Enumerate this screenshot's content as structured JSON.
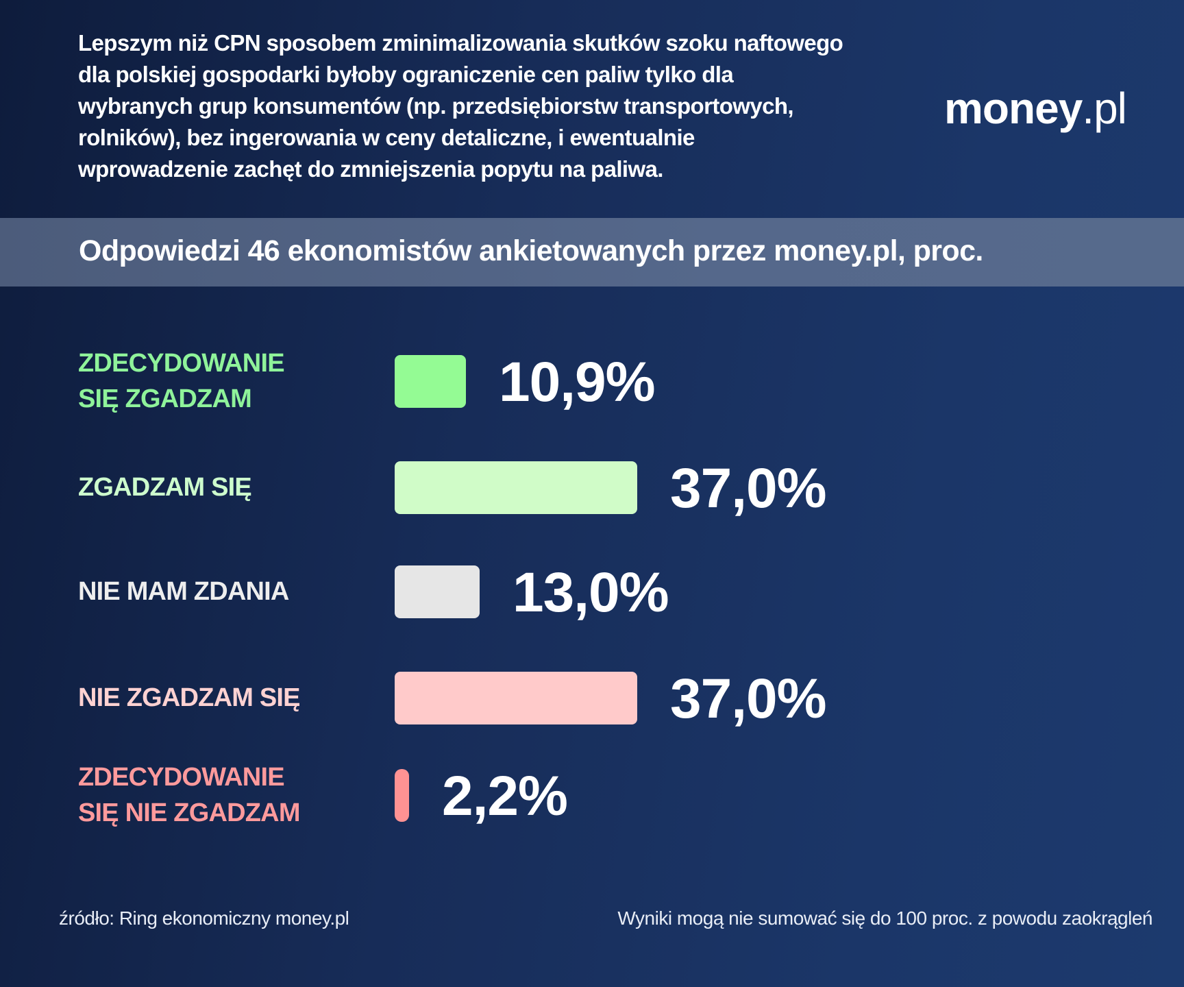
{
  "header": {
    "question": "Lepszym niż CPN sposobem zminimalizowania skutków szoku naftowego\ndla polskiej gospodarki byłoby ograniczenie cen paliw tylko dla\nwybranych grup konsumentów (np. przedsiębiorstw transportowych,\nrolników), bez ingerowania w ceny detaliczne, i ewentualnie\nwprowadzenie zachęt do zmniejszenia popytu na paliwa.",
    "logo_brand": "money",
    "logo_tld": ".pl"
  },
  "band": {
    "subtitle": "Odpowiedzi 46 ekonomistów ankietowanych przez money.pl, proc."
  },
  "responses": [
    {
      "label": "ZDECYDOWANIE\nSIĘ ZGADZAM",
      "value_text": "10,9%",
      "value": 10.9,
      "color": "#94fb94",
      "label_color": "#8ff39a"
    },
    {
      "label": "ZGADZAM SIĘ",
      "value_text": "37,0%",
      "value": 37.0,
      "color": "#d0fcc8",
      "label_color": "#cdfccd"
    },
    {
      "label": "NIE MAM ZDANIA",
      "value_text": "13,0%",
      "value": 13.0,
      "color": "#e6e6e6",
      "label_color": "#eeeeee"
    },
    {
      "label": "NIE ZGADZAM SIĘ",
      "value_text": "37,0%",
      "value": 37.0,
      "color": "#ffcaca",
      "label_color": "#ffd2d2"
    },
    {
      "label": "ZDECYDOWANIE\nSIĘ NIE ZGADZAM",
      "value_text": "2,2%",
      "value": 2.2,
      "color": "#ff9293",
      "label_color": "#ff9a9c"
    }
  ],
  "footer": {
    "source": "źródło: Ring ekonomiczny money.pl",
    "note": "Wyniki mogą nie sumować się do 100 proc. z powodu zaokrągleń"
  },
  "chart_data": {
    "type": "bar",
    "orientation": "horizontal",
    "title": "Lepszym niż CPN sposobem zminimalizowania skutków szoku naftowego dla polskiej gospodarki byłoby ograniczenie cen paliw tylko dla wybranych grup konsumentów (np. przedsiębiorstw transportowych, rolników), bez ingerowania w ceny detaliczne, i ewentualnie wprowadzenie zachęt do zmniejszenia popytu na paliwa.",
    "subtitle": "Odpowiedzi 46 ekonomistów ankietowanych przez money.pl, proc.",
    "categories": [
      "ZDECYDOWANIE SIĘ ZGADZAM",
      "ZGADZAM SIĘ",
      "NIE MAM ZDANIA",
      "NIE ZGADZAM SIĘ",
      "ZDECYDOWANIE SIĘ NIE ZGADZAM"
    ],
    "values": [
      10.9,
      37.0,
      13.0,
      37.0,
      2.2
    ],
    "value_labels": [
      "10,9%",
      "37,0%",
      "13,0%",
      "37,0%",
      "2,2%"
    ],
    "colors": [
      "#94fb94",
      "#d0fcc8",
      "#e6e6e6",
      "#ffcaca",
      "#ff9293"
    ],
    "xlabel": "",
    "ylabel": "",
    "unit": "%",
    "grid": false,
    "legend": "none",
    "annotations": [
      "źródło: Ring ekonomiczny money.pl",
      "Wyniki mogą nie sumować się do 100 proc. z powodu zaokrągleń"
    ]
  }
}
